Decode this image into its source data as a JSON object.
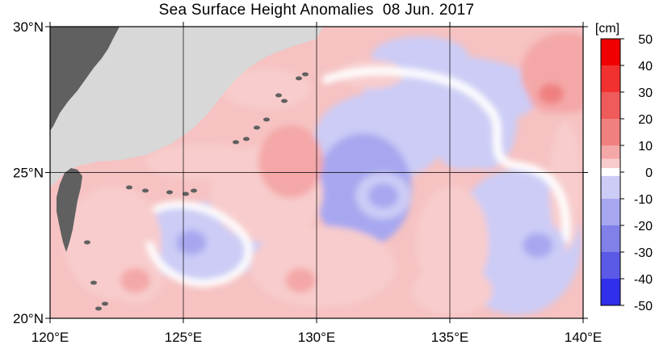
{
  "title": "Sea Surface Height Anomalies  08 Jun. 2017",
  "colorbar": {
    "unit": "[cm]",
    "ticks": [
      "50",
      "40",
      "30",
      "20",
      "10",
      "0",
      "-10",
      "-20",
      "-30",
      "-40",
      "-50"
    ],
    "colors": [
      "#f00000",
      "#f23030",
      "#ef5a5a",
      "#f08080",
      "#f4a7a7",
      "#f8cccc",
      "#ffffff",
      "#ccccf6",
      "#a7a7f0",
      "#8080e8",
      "#5a5ae6",
      "#3030ea",
      "#0000f0"
    ]
  },
  "axes": {
    "x_ticks": [
      "120°E",
      "125°E",
      "130°E",
      "135°E",
      "140°E"
    ],
    "y_ticks": [
      "30°N",
      "25°N",
      "20°N"
    ]
  },
  "chart_data": {
    "type": "heatmap",
    "title": "Sea Surface Height Anomalies  08 Jun. 2017",
    "unit": "cm",
    "xlim_deg_e": [
      120,
      140
    ],
    "ylim_deg_n": [
      20,
      30
    ],
    "grid": true,
    "color_scale": {
      "min": -50,
      "max": 50,
      "step": 10
    },
    "notable_anomalies": [
      {
        "feature": "positive eddy",
        "lon": 138.8,
        "lat": 27.7,
        "value_cm": 30
      },
      {
        "feature": "positive eddy",
        "lon": 123.2,
        "lat": 21.3,
        "value_cm": 20
      },
      {
        "feature": "positive eddy",
        "lon": 129.4,
        "lat": 21.3,
        "value_cm": 20
      },
      {
        "feature": "negative eddy",
        "lon": 132.5,
        "lat": 24.2,
        "value_cm": -20
      },
      {
        "feature": "negative eddy",
        "lon": 138.3,
        "lat": 22.5,
        "value_cm": -20
      },
      {
        "feature": "negative eddy",
        "lon": 125.3,
        "lat": 22.6,
        "value_cm": -20
      },
      {
        "feature": "negative eddy",
        "lon": 135.5,
        "lat": 25.9,
        "value_cm": -10
      }
    ]
  }
}
